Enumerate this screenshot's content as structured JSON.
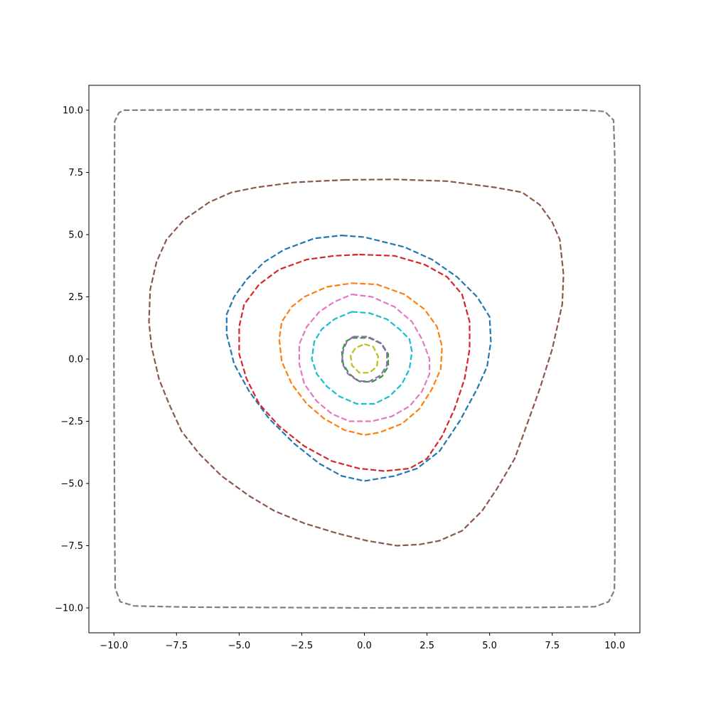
{
  "chart_data": {
    "type": "line",
    "title": "",
    "xlabel": "",
    "ylabel": "",
    "xlim": [
      -11,
      11
    ],
    "ylim": [
      -11,
      11
    ],
    "grid": false,
    "legend": "none",
    "x_ticks": [
      {
        "value": -10,
        "label": "−10.0"
      },
      {
        "value": -7.5,
        "label": "−7.5"
      },
      {
        "value": -5,
        "label": "−5.0"
      },
      {
        "value": -2.5,
        "label": "−2.5"
      },
      {
        "value": 0,
        "label": "0.0"
      },
      {
        "value": 2.5,
        "label": "2.5"
      },
      {
        "value": 5,
        "label": "5.0"
      },
      {
        "value": 7.5,
        "label": "7.5"
      },
      {
        "value": 10,
        "label": "10.0"
      }
    ],
    "y_ticks": [
      {
        "value": -10,
        "label": "−10.0"
      },
      {
        "value": -7.5,
        "label": "−7.5"
      },
      {
        "value": -5,
        "label": "−5.0"
      },
      {
        "value": -2.5,
        "label": "−2.5"
      },
      {
        "value": 0,
        "label": "0.0"
      },
      {
        "value": 2.5,
        "label": "2.5"
      },
      {
        "value": 5,
        "label": "5.0"
      },
      {
        "value": 7.5,
        "label": "7.5"
      },
      {
        "value": 10,
        "label": "10.0"
      }
    ],
    "series": [
      {
        "color": "#7f7f7f",
        "style": "dashed",
        "points": [
          [
            -9.6,
            10
          ],
          [
            -6,
            10.02
          ],
          [
            0,
            10.02
          ],
          [
            6,
            10.02
          ],
          [
            8.8,
            10
          ],
          [
            9.6,
            9.95
          ],
          [
            9.95,
            9.6
          ],
          [
            10,
            8
          ],
          [
            10,
            0
          ],
          [
            10,
            -8
          ],
          [
            9.98,
            -9.3
          ],
          [
            9.75,
            -9.75
          ],
          [
            9.2,
            -9.95
          ],
          [
            7,
            -9.98
          ],
          [
            0,
            -10
          ],
          [
            -7,
            -9.97
          ],
          [
            -9.2,
            -9.92
          ],
          [
            -9.75,
            -9.75
          ],
          [
            -9.95,
            -9.2
          ],
          [
            -9.97,
            -7
          ],
          [
            -10,
            0
          ],
          [
            -9.98,
            7
          ],
          [
            -9.97,
            9.55
          ],
          [
            -9.8,
            9.9
          ],
          [
            -9.6,
            10
          ]
        ]
      },
      {
        "color": "#8c564b",
        "style": "dashed",
        "points": [
          [
            -0.8,
            7.2
          ],
          [
            1.2,
            7.22
          ],
          [
            3.3,
            7.15
          ],
          [
            5.2,
            6.9
          ],
          [
            6.3,
            6.7
          ],
          [
            7,
            6.2
          ],
          [
            7.5,
            5.5
          ],
          [
            7.8,
            4.8
          ],
          [
            7.95,
            3.4
          ],
          [
            7.9,
            2.2
          ],
          [
            7.5,
            0.4
          ],
          [
            7,
            -1.2
          ],
          [
            6.5,
            -2.6
          ],
          [
            6,
            -4
          ],
          [
            5.3,
            -5.2
          ],
          [
            4.7,
            -6.1
          ],
          [
            3.9,
            -6.9
          ],
          [
            3,
            -7.3
          ],
          [
            2.2,
            -7.45
          ],
          [
            1.3,
            -7.5
          ],
          [
            0.1,
            -7.3
          ],
          [
            -1.1,
            -7
          ],
          [
            -2.4,
            -6.6
          ],
          [
            -3.6,
            -6.1
          ],
          [
            -4.6,
            -5.5
          ],
          [
            -5.7,
            -4.7
          ],
          [
            -6.6,
            -3.8
          ],
          [
            -7.3,
            -2.9
          ],
          [
            -7.8,
            -1.8
          ],
          [
            -8.2,
            -0.8
          ],
          [
            -8.5,
            0.5
          ],
          [
            -8.6,
            1.5
          ],
          [
            -8.55,
            2.8
          ],
          [
            -8.3,
            3.9
          ],
          [
            -7.9,
            4.8
          ],
          [
            -7.2,
            5.6
          ],
          [
            -6.2,
            6.3
          ],
          [
            -5.3,
            6.7
          ],
          [
            -4.3,
            6.9
          ],
          [
            -2.8,
            7.1
          ],
          [
            -0.8,
            7.2
          ]
        ]
      },
      {
        "color": "#1f77b4",
        "style": "dashed",
        "points": [
          [
            -0.9,
            4.97
          ],
          [
            0,
            4.9
          ],
          [
            1.6,
            4.5
          ],
          [
            2.7,
            4
          ],
          [
            3.7,
            3.3
          ],
          [
            4.5,
            2.5
          ],
          [
            5,
            1.7
          ],
          [
            5.05,
            0.7
          ],
          [
            4.9,
            -0.3
          ],
          [
            4.5,
            -1.2
          ],
          [
            3.8,
            -2.5
          ],
          [
            3,
            -3.7
          ],
          [
            2.1,
            -4.4
          ],
          [
            1.2,
            -4.7
          ],
          [
            0,
            -4.9
          ],
          [
            -0.9,
            -4.7
          ],
          [
            -1.8,
            -4.2
          ],
          [
            -2.8,
            -3.4
          ],
          [
            -3.8,
            -2.4
          ],
          [
            -4.6,
            -1.3
          ],
          [
            -5.2,
            -0.2
          ],
          [
            -5.5,
            1
          ],
          [
            -5.5,
            1.8
          ],
          [
            -5.2,
            2.5
          ],
          [
            -4.7,
            3.2
          ],
          [
            -4,
            3.9
          ],
          [
            -3.2,
            4.4
          ],
          [
            -2,
            4.85
          ],
          [
            -0.9,
            4.97
          ]
        ]
      },
      {
        "color": "#d62728",
        "style": "dashed",
        "points": [
          [
            -0.2,
            4.2
          ],
          [
            1.2,
            4.15
          ],
          [
            2.4,
            3.8
          ],
          [
            3.3,
            3.3
          ],
          [
            3.9,
            2.6
          ],
          [
            4.2,
            1.5
          ],
          [
            4.2,
            0.4
          ],
          [
            4,
            -0.8
          ],
          [
            3.6,
            -2
          ],
          [
            3.1,
            -3.1
          ],
          [
            2.5,
            -4
          ],
          [
            1.8,
            -4.4
          ],
          [
            0.8,
            -4.5
          ],
          [
            -0.2,
            -4.4
          ],
          [
            -1.3,
            -4.1
          ],
          [
            -2.4,
            -3.5
          ],
          [
            -3.4,
            -2.7
          ],
          [
            -4.2,
            -1.8
          ],
          [
            -4.7,
            -0.8
          ],
          [
            -5,
            0.2
          ],
          [
            -5,
            1.3
          ],
          [
            -4.8,
            2.2
          ],
          [
            -4.2,
            3
          ],
          [
            -3.4,
            3.6
          ],
          [
            -2.3,
            4
          ],
          [
            -1.2,
            4.15
          ],
          [
            -0.2,
            4.2
          ]
        ]
      },
      {
        "color": "#ff7f0e",
        "style": "dashed",
        "points": [
          [
            -0.5,
            3.05
          ],
          [
            0.5,
            3
          ],
          [
            1.6,
            2.6
          ],
          [
            2.4,
            2
          ],
          [
            2.9,
            1.3
          ],
          [
            3.1,
            0.5
          ],
          [
            3.05,
            -0.4
          ],
          [
            2.7,
            -1.2
          ],
          [
            2.2,
            -2
          ],
          [
            1.5,
            -2.6
          ],
          [
            0.6,
            -2.95
          ],
          [
            0,
            -3.05
          ],
          [
            -0.8,
            -2.85
          ],
          [
            -1.6,
            -2.4
          ],
          [
            -2.3,
            -1.8
          ],
          [
            -2.9,
            -1
          ],
          [
            -3.3,
            -0.1
          ],
          [
            -3.4,
            0.8
          ],
          [
            -3.3,
            1.5
          ],
          [
            -2.9,
            2.1
          ],
          [
            -2.4,
            2.5
          ],
          [
            -1.5,
            2.9
          ],
          [
            -0.5,
            3.05
          ]
        ]
      },
      {
        "color": "#e377c2",
        "style": "dashed",
        "points": [
          [
            -0.5,
            2.6
          ],
          [
            0.3,
            2.5
          ],
          [
            1.2,
            2.1
          ],
          [
            1.9,
            1.5
          ],
          [
            2.3,
            0.8
          ],
          [
            2.6,
            0
          ],
          [
            2.6,
            -0.6
          ],
          [
            2.3,
            -1.3
          ],
          [
            1.8,
            -1.9
          ],
          [
            1.1,
            -2.3
          ],
          [
            0.3,
            -2.5
          ],
          [
            -0.6,
            -2.5
          ],
          [
            -1.3,
            -2.2
          ],
          [
            -1.9,
            -1.7
          ],
          [
            -2.4,
            -1
          ],
          [
            -2.6,
            -0.2
          ],
          [
            -2.6,
            0.6
          ],
          [
            -2.3,
            1.3
          ],
          [
            -1.8,
            1.9
          ],
          [
            -1.2,
            2.3
          ],
          [
            -0.5,
            2.6
          ]
        ]
      },
      {
        "color": "#17becf",
        "style": "dashed",
        "points": [
          [
            -0.5,
            1.9
          ],
          [
            0.2,
            1.85
          ],
          [
            0.9,
            1.6
          ],
          [
            1.4,
            1.2
          ],
          [
            1.8,
            0.8
          ],
          [
            1.9,
            0.3
          ],
          [
            1.8,
            -0.4
          ],
          [
            1.5,
            -1
          ],
          [
            1,
            -1.5
          ],
          [
            0.4,
            -1.8
          ],
          [
            -0.3,
            -1.8
          ],
          [
            -1,
            -1.5
          ],
          [
            -1.5,
            -1.1
          ],
          [
            -1.9,
            -0.6
          ],
          [
            -2.1,
            0
          ],
          [
            -2,
            0.7
          ],
          [
            -1.7,
            1.2
          ],
          [
            -1.2,
            1.6
          ],
          [
            -0.5,
            1.9
          ]
        ]
      },
      {
        "color": "#2ca02c",
        "style": "dashed",
        "points": [
          [
            -0.5,
            0.85
          ],
          [
            0.2,
            0.85
          ],
          [
            0.7,
            0.6
          ],
          [
            0.95,
            0.2
          ],
          [
            0.95,
            -0.3
          ],
          [
            0.7,
            -0.7
          ],
          [
            0.3,
            -0.92
          ],
          [
            -0.2,
            -0.9
          ],
          [
            -0.6,
            -0.6
          ],
          [
            -0.85,
            -0.2
          ],
          [
            -0.9,
            0.3
          ],
          [
            -0.75,
            0.7
          ],
          [
            -0.5,
            0.85
          ]
        ]
      },
      {
        "color": "#9467bd",
        "style": "dashed",
        "points": [
          [
            -0.45,
            0.9
          ],
          [
            0.15,
            0.9
          ],
          [
            0.65,
            0.65
          ],
          [
            0.9,
            0.25
          ],
          [
            0.9,
            -0.25
          ],
          [
            0.65,
            -0.65
          ],
          [
            0.2,
            -0.9
          ],
          [
            -0.25,
            -0.88
          ],
          [
            -0.65,
            -0.6
          ],
          [
            -0.9,
            -0.15
          ],
          [
            -0.85,
            0.35
          ],
          [
            -0.7,
            0.7
          ],
          [
            -0.45,
            0.9
          ]
        ]
      },
      {
        "color": "#bcbd22",
        "style": "dashed",
        "points": [
          [
            0,
            0.6
          ],
          [
            0.35,
            0.5
          ],
          [
            0.55,
            0.1
          ],
          [
            0.5,
            -0.3
          ],
          [
            0.2,
            -0.55
          ],
          [
            -0.2,
            -0.55
          ],
          [
            -0.5,
            -0.25
          ],
          [
            -0.55,
            0.15
          ],
          [
            -0.35,
            0.45
          ],
          [
            0,
            0.6
          ]
        ]
      }
    ]
  }
}
